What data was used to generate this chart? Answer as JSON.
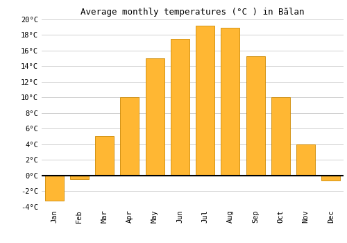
{
  "months": [
    "Jan",
    "Feb",
    "Mar",
    "Apr",
    "May",
    "Jun",
    "Jul",
    "Aug",
    "Sep",
    "Oct",
    "Nov",
    "Dec"
  ],
  "values": [
    -3.2,
    -0.5,
    5.0,
    10.0,
    15.0,
    17.5,
    19.2,
    18.9,
    15.3,
    10.0,
    4.0,
    -0.7
  ],
  "bar_color": "#FFB733",
  "bar_edge_color": "#CC8800",
  "title": "Average monthly temperatures (°C ) in Bălan",
  "ylim": [
    -4,
    20
  ],
  "ytick_step": 2,
  "background_color": "#ffffff",
  "grid_color": "#d0d0d0",
  "title_fontsize": 9,
  "tick_fontsize": 7.5,
  "zero_line_color": "#000000",
  "bar_width": 0.75
}
